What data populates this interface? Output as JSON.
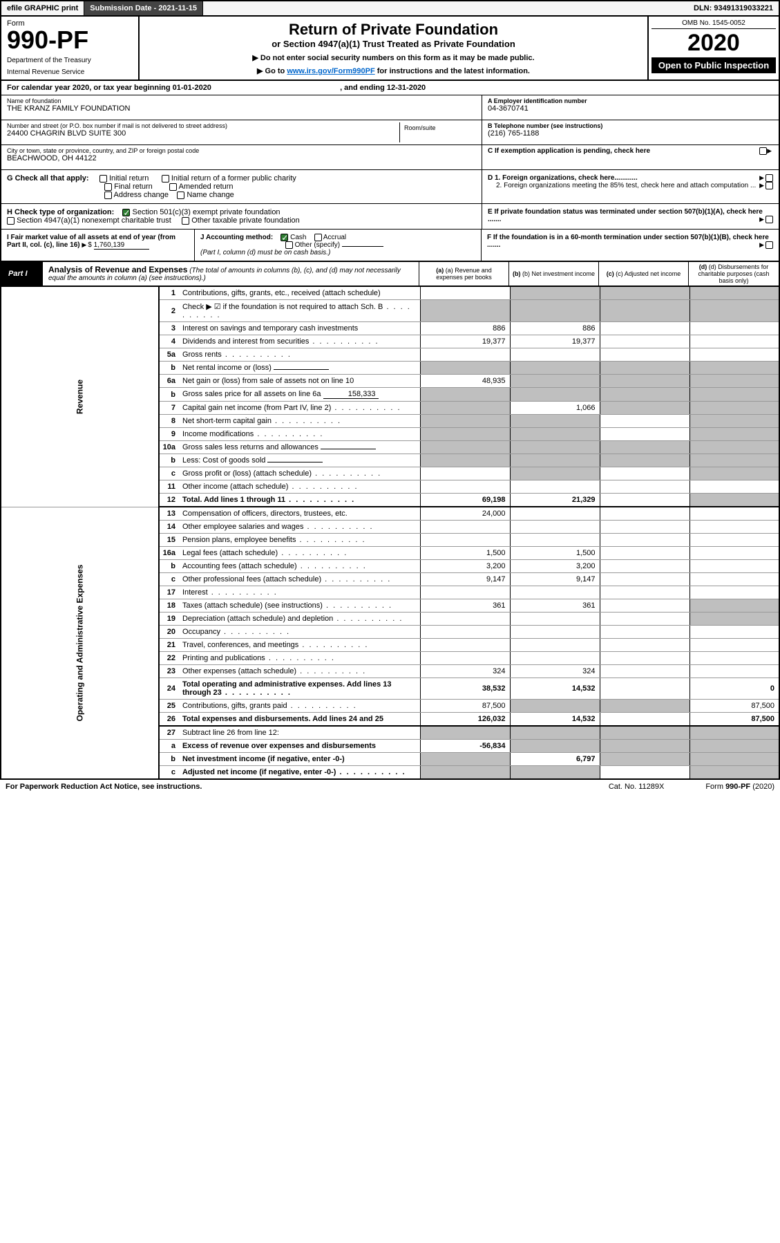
{
  "topbar": {
    "efile": "efile GRAPHIC print",
    "subdate_label": "Submission Date - 2021-11-15",
    "dln": "DLN: 93491319033221"
  },
  "header": {
    "form_label": "Form",
    "form_num": "990-PF",
    "dept": "Department of the Treasury",
    "irs": "Internal Revenue Service",
    "title": "Return of Private Foundation",
    "subtitle": "or Section 4947(a)(1) Trust Treated as Private Foundation",
    "note1": "▶ Do not enter social security numbers on this form as it may be made public.",
    "note2_pre": "▶ Go to ",
    "note2_link": "www.irs.gov/Form990PF",
    "note2_post": " for instructions and the latest information.",
    "omb": "OMB No. 1545-0052",
    "year": "2020",
    "open": "Open to Public Inspection"
  },
  "calyear": {
    "pre": "For calendar year 2020, or tax year beginning ",
    "begin": "01-01-2020",
    "mid": " , and ending ",
    "end": "12-31-2020"
  },
  "identity": {
    "name_lbl": "Name of foundation",
    "name": "THE KRANZ FAMILY FOUNDATION",
    "addr_lbl": "Number and street (or P.O. box number if mail is not delivered to street address)",
    "addr": "24400 CHAGRIN BLVD SUITE 300",
    "room_lbl": "Room/suite",
    "city_lbl": "City or town, state or province, country, and ZIP or foreign postal code",
    "city": "BEACHWOOD, OH  44122",
    "ein_lbl": "A Employer identification number",
    "ein": "04-3670741",
    "tel_lbl": "B Telephone number (see instructions)",
    "tel": "(216) 765-1188",
    "c_lbl": "C If exemption application is pending, check here"
  },
  "checkG": {
    "lbl": "G Check all that apply:",
    "opts": [
      "Initial return",
      "Final return",
      "Address change",
      "Initial return of a former public charity",
      "Amended return",
      "Name change"
    ]
  },
  "checkD": {
    "d1": "D 1. Foreign organizations, check here............",
    "d2": "2. Foreign organizations meeting the 85% test, check here and attach computation ...",
    "e": "E  If private foundation status was terminated under section 507(b)(1)(A), check here .......",
    "f": "F  If the foundation is in a 60-month termination under section 507(b)(1)(B), check here ......."
  },
  "checkH": {
    "lbl": "H Check type of organization:",
    "o1": "Section 501(c)(3) exempt private foundation",
    "o2": "Section 4947(a)(1) nonexempt charitable trust",
    "o3": "Other taxable private foundation"
  },
  "rowI": {
    "lbl": "I Fair market value of all assets at end of year (from Part II, col. (c), line 16)",
    "val": "1,760,139"
  },
  "rowJ": {
    "lbl": "J Accounting method:",
    "cash": "Cash",
    "accrual": "Accrual",
    "other": "Other (specify)",
    "note": "(Part I, column (d) must be on cash basis.)"
  },
  "part1": {
    "label": "Part I",
    "title": "Analysis of Revenue and Expenses",
    "title_note": " (The total of amounts in columns (b), (c), and (d) may not necessarily equal the amounts in column (a) (see instructions).)",
    "col_a": "(a)  Revenue and expenses per books",
    "col_b": "(b)  Net investment income",
    "col_c": "(c)  Adjusted net income",
    "col_d": "(d)  Disbursements for charitable purposes (cash basis only)"
  },
  "side": {
    "rev": "Revenue",
    "exp": "Operating and Administrative Expenses"
  },
  "rows": [
    {
      "n": "1",
      "d": "Contributions, gifts, grants, etc., received (attach schedule)",
      "a": "",
      "b": "",
      "bg_b": true,
      "bg_c": true,
      "bg_d": true
    },
    {
      "n": "2",
      "d": "Check ▶ ☑ if the foundation is not required to attach Sch. B",
      "a": "",
      "bg_a": true,
      "bg_b": true,
      "bg_c": true,
      "bg_d": true,
      "dots": true
    },
    {
      "n": "3",
      "d": "Interest on savings and temporary cash investments",
      "a": "886",
      "b": "886"
    },
    {
      "n": "4",
      "d": "Dividends and interest from securities",
      "a": "19,377",
      "b": "19,377",
      "dots": true
    },
    {
      "n": "5a",
      "d": "Gross rents",
      "dots": true
    },
    {
      "n": "b",
      "d": "Net rental income or (loss)",
      "bg_a": true,
      "bg_b": true,
      "bg_c": true,
      "bg_d": true,
      "uline": true
    },
    {
      "n": "6a",
      "d": "Net gain or (loss) from sale of assets not on line 10",
      "a": "48,935",
      "bg_b": true,
      "bg_c": true,
      "bg_d": true
    },
    {
      "n": "b",
      "d": "Gross sales price for all assets on line 6a",
      "uval": "158,333",
      "bg_a": true,
      "bg_b": true,
      "bg_c": true,
      "bg_d": true,
      "uline": true
    },
    {
      "n": "7",
      "d": "Capital gain net income (from Part IV, line 2)",
      "b": "1,066",
      "bg_a": true,
      "bg_c": true,
      "bg_d": true,
      "dots": true
    },
    {
      "n": "8",
      "d": "Net short-term capital gain",
      "bg_a": true,
      "bg_b": true,
      "bg_d": true,
      "dots": true
    },
    {
      "n": "9",
      "d": "Income modifications",
      "bg_a": true,
      "bg_b": true,
      "bg_d": true,
      "dots": true
    },
    {
      "n": "10a",
      "d": "Gross sales less returns and allowances",
      "bg_a": true,
      "bg_b": true,
      "bg_c": true,
      "bg_d": true,
      "uline": true
    },
    {
      "n": "b",
      "d": "Less: Cost of goods sold",
      "bg_a": true,
      "bg_b": true,
      "bg_c": true,
      "bg_d": true,
      "dots": true,
      "uline": true
    },
    {
      "n": "c",
      "d": "Gross profit or (loss) (attach schedule)",
      "bg_b": true,
      "bg_d": true,
      "dots": true
    },
    {
      "n": "11",
      "d": "Other income (attach schedule)",
      "dots": true
    },
    {
      "n": "12",
      "d": "Total. Add lines 1 through 11",
      "a": "69,198",
      "b": "21,329",
      "bg_d": true,
      "strong": true,
      "dots": true,
      "total": true
    }
  ],
  "exprows": [
    {
      "n": "13",
      "d": "Compensation of officers, directors, trustees, etc.",
      "a": "24,000"
    },
    {
      "n": "14",
      "d": "Other employee salaries and wages",
      "dots": true
    },
    {
      "n": "15",
      "d": "Pension plans, employee benefits",
      "dots": true
    },
    {
      "n": "16a",
      "d": "Legal fees (attach schedule)",
      "a": "1,500",
      "b": "1,500",
      "dots": true
    },
    {
      "n": "b",
      "d": "Accounting fees (attach schedule)",
      "a": "3,200",
      "b": "3,200",
      "dots": true
    },
    {
      "n": "c",
      "d": "Other professional fees (attach schedule)",
      "a": "9,147",
      "b": "9,147",
      "dots": true
    },
    {
      "n": "17",
      "d": "Interest",
      "dots": true
    },
    {
      "n": "18",
      "d": "Taxes (attach schedule) (see instructions)",
      "a": "361",
      "b": "361",
      "bg_d": true,
      "dots": true
    },
    {
      "n": "19",
      "d": "Depreciation (attach schedule) and depletion",
      "bg_d": true,
      "dots": true
    },
    {
      "n": "20",
      "d": "Occupancy",
      "dots": true
    },
    {
      "n": "21",
      "d": "Travel, conferences, and meetings",
      "dots": true
    },
    {
      "n": "22",
      "d": "Printing and publications",
      "dots": true
    },
    {
      "n": "23",
      "d": "Other expenses (attach schedule)",
      "a": "324",
      "b": "324",
      "dots": true
    },
    {
      "n": "24",
      "d": "Total operating and administrative expenses. Add lines 13 through 23",
      "a": "38,532",
      "b": "14,532",
      "dd": "0",
      "strong": true,
      "dots": true
    },
    {
      "n": "25",
      "d": "Contributions, gifts, grants paid",
      "a": "87,500",
      "bg_b": true,
      "bg_c": true,
      "dd": "87,500",
      "dots": true
    },
    {
      "n": "26",
      "d": "Total expenses and disbursements. Add lines 24 and 25",
      "a": "126,032",
      "b": "14,532",
      "dd": "87,500",
      "strong": true,
      "total": true
    },
    {
      "n": "27",
      "d": "Subtract line 26 from line 12:",
      "bg_a": true,
      "bg_b": true,
      "bg_c": true,
      "bg_d": true
    },
    {
      "n": "a",
      "d": "Excess of revenue over expenses and disbursements",
      "a": "-56,834",
      "bg_b": true,
      "bg_c": true,
      "bg_d": true,
      "strong": true
    },
    {
      "n": "b",
      "d": "Net investment income (if negative, enter -0-)",
      "b": "6,797",
      "bg_a": true,
      "bg_c": true,
      "bg_d": true,
      "strong": true
    },
    {
      "n": "c",
      "d": "Adjusted net income (if negative, enter -0-)",
      "bg_a": true,
      "bg_b": true,
      "bg_d": true,
      "strong": true,
      "dots": true
    }
  ],
  "footer": {
    "f1": "For Paperwork Reduction Act Notice, see instructions.",
    "f2": "Cat. No. 11289X",
    "f3": "Form 990-PF (2020)"
  }
}
